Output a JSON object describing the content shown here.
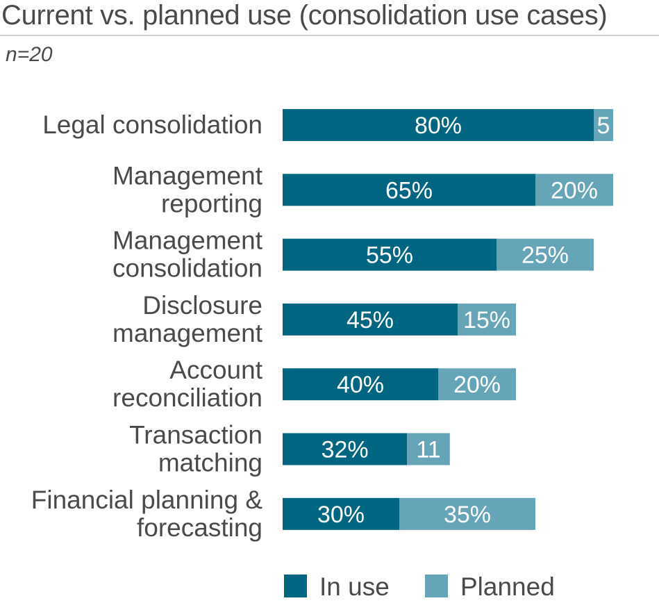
{
  "header": {
    "title": "Current vs. planned use (consolidation use cases)",
    "subtitle": "n=20"
  },
  "chart_data": {
    "type": "bar",
    "orientation": "horizontal",
    "stacked": true,
    "title": "Current vs. planned use (consolidation use cases)",
    "subtitle": "n=20",
    "categories": [
      [
        "Legal consolidation"
      ],
      [
        "Management",
        "reporting"
      ],
      [
        "Management",
        "consolidation"
      ],
      [
        "Disclosure",
        "management"
      ],
      [
        "Account",
        "reconciliation"
      ],
      [
        "Transaction",
        "matching"
      ],
      [
        "Financial planning &",
        "forecasting"
      ]
    ],
    "series": [
      {
        "name": "In use",
        "color": "#006580",
        "values": [
          80,
          65,
          55,
          45,
          40,
          32,
          30
        ],
        "labels": [
          "80%",
          "65%",
          "55%",
          "45%",
          "40%",
          "32%",
          "30%"
        ]
      },
      {
        "name": "Planned",
        "color": "#66a5b8",
        "values": [
          5,
          20,
          25,
          15,
          20,
          11,
          35
        ],
        "labels": [
          "5",
          "20%",
          "25%",
          "15%",
          "20%",
          "11",
          "35%"
        ]
      }
    ],
    "xlim": [
      0,
      85
    ],
    "grid": false,
    "legend": "bottom"
  }
}
